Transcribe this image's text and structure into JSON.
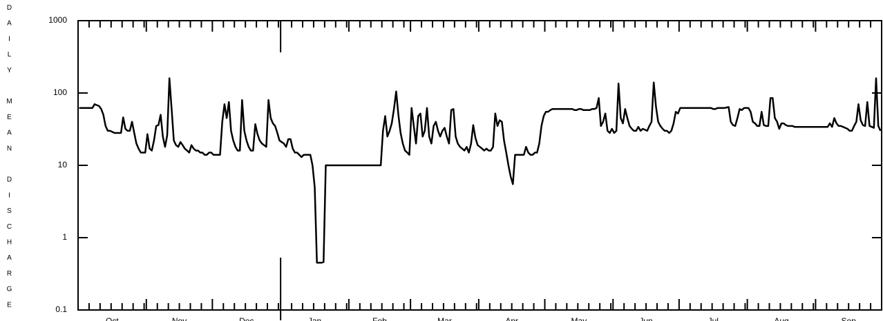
{
  "chart_data": {
    "type": "line",
    "y_label": "DAILY MEAN DISCHARGE",
    "log_scale": true,
    "color": "#000000",
    "categories": [
      "Oct",
      "Nov",
      "Dec",
      "Jan",
      "Feb",
      "Mar",
      "Apr",
      "May",
      "Jun",
      "Jul",
      "Aug",
      "Sep"
    ],
    "values": [
      [
        62,
        62,
        62,
        62,
        62,
        62,
        62,
        70,
        68,
        66,
        60,
        50,
        35,
        30,
        30,
        29,
        28,
        28,
        28,
        28,
        46,
        32,
        30,
        30,
        40,
        28,
        20,
        17,
        15,
        15,
        15
      ],
      [
        27,
        17,
        16,
        22,
        35,
        36,
        50,
        25,
        18,
        26,
        160,
        60,
        22,
        19,
        18,
        21,
        19,
        17,
        16,
        15,
        19,
        17,
        16,
        16,
        15,
        15,
        14,
        14,
        15,
        15
      ],
      [
        14,
        14,
        14,
        14,
        40,
        70,
        45,
        75,
        30,
        22,
        18,
        16,
        16,
        80,
        30,
        22,
        18,
        16,
        16,
        37,
        27,
        22,
        20,
        19,
        18,
        80,
        45,
        38,
        35,
        28,
        22
      ],
      [
        21,
        20,
        18,
        23,
        23,
        17,
        15,
        15,
        14,
        13,
        14,
        14,
        14,
        14,
        10,
        5,
        0.45,
        0.45,
        0.45,
        0.46,
        10,
        10,
        10,
        10,
        10,
        10,
        10,
        10,
        10,
        10,
        10
      ],
      [
        10,
        10,
        10,
        10,
        10,
        10,
        10,
        10,
        10,
        10,
        10,
        10,
        10,
        10,
        10,
        30,
        48,
        25,
        30,
        38,
        60,
        105,
        50,
        28,
        20,
        16,
        15,
        14
      ],
      [
        62,
        35,
        20,
        48,
        52,
        25,
        30,
        62,
        25,
        20,
        35,
        40,
        30,
        25,
        30,
        33,
        25,
        20,
        58,
        60,
        25,
        20,
        18,
        17,
        16,
        18,
        15,
        20,
        36,
        24,
        19
      ],
      [
        18,
        17,
        16,
        17,
        16,
        16,
        18,
        52,
        35,
        42,
        40,
        22,
        15,
        10,
        7,
        5.5,
        14,
        14,
        14,
        14,
        14,
        18,
        15,
        14,
        14,
        15,
        15,
        20,
        35,
        48
      ],
      [
        55,
        55,
        58,
        60,
        60,
        60,
        60,
        60,
        60,
        60,
        60,
        60,
        60,
        58,
        58,
        60,
        60,
        58,
        58,
        58,
        58,
        60,
        60,
        62,
        85,
        35,
        40,
        52,
        30,
        28,
        32
      ],
      [
        28,
        30,
        135,
        45,
        38,
        60,
        45,
        35,
        32,
        30,
        30,
        34,
        30,
        32,
        31,
        30,
        35,
        40,
        140,
        65,
        40,
        35,
        32,
        30,
        30,
        28,
        30,
        38,
        55,
        52
      ],
      [
        62,
        62,
        62,
        62,
        62,
        62,
        62,
        62,
        62,
        62,
        62,
        62,
        62,
        62,
        62,
        60,
        60,
        62,
        62,
        62,
        62,
        63,
        64,
        40,
        36,
        35,
        45,
        60,
        58,
        62,
        62
      ],
      [
        62,
        55,
        40,
        38,
        35,
        35,
        55,
        36,
        35,
        35,
        85,
        85,
        45,
        40,
        32,
        38,
        38,
        36,
        35,
        35,
        35,
        34,
        34,
        34,
        34,
        34,
        34,
        34,
        34,
        34,
        34
      ],
      [
        34,
        34,
        34,
        34,
        34,
        34,
        38,
        34,
        45,
        38,
        35,
        35,
        34,
        33,
        32,
        30,
        30,
        35,
        40,
        70,
        42,
        36,
        35,
        75,
        35,
        34,
        33,
        160,
        35,
        30
      ]
    ],
    "ylim": [
      0.1,
      1000
    ],
    "yticks": [
      0.1,
      1,
      10,
      100,
      1000
    ]
  }
}
